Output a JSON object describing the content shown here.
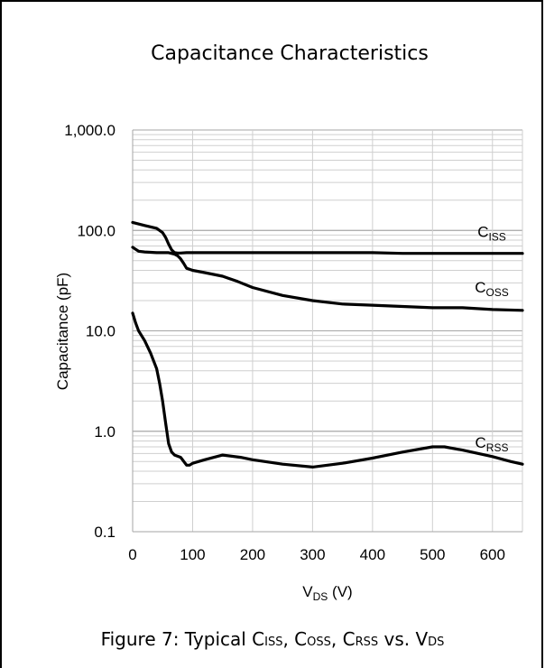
{
  "chart_data": {
    "type": "line",
    "title": "Capacitance Characteristics",
    "xlabel": {
      "main": "V",
      "sub": "DS",
      "unit": " (V)"
    },
    "ylabel": "Capacitance (pF)",
    "xlim": [
      0,
      650
    ],
    "ylim": [
      0.1,
      1000
    ],
    "yscale": "log",
    "xticks": [
      "0",
      "100",
      "200",
      "300",
      "400",
      "500",
      "600"
    ],
    "yticks": [
      "0.1",
      "1.0",
      "10.0",
      "100.0",
      "1,000.0"
    ],
    "grid": true,
    "series": [
      {
        "name": {
          "main": "C",
          "sub": "ISS"
        },
        "color": "#000000",
        "x": [
          0,
          20,
          40,
          50,
          55,
          60,
          65,
          70,
          75,
          80,
          90,
          100,
          150,
          200,
          300,
          400,
          450,
          500,
          600,
          650
        ],
        "y": [
          120,
          112,
          105,
          95,
          85,
          73,
          64,
          60,
          59.5,
          59.5,
          60,
          60,
          60,
          60,
          60,
          60,
          59,
          59,
          59,
          59
        ]
      },
      {
        "name": {
          "main": "C",
          "sub": "OSS"
        },
        "color": "#000000",
        "x": [
          0,
          10,
          20,
          40,
          60,
          70,
          75,
          80,
          85,
          90,
          100,
          120,
          150,
          175,
          200,
          250,
          300,
          350,
          400,
          450,
          500,
          550,
          600,
          650
        ],
        "y": [
          68,
          62,
          61,
          60,
          60,
          58,
          56,
          52,
          47,
          42,
          40,
          38,
          35,
          31,
          27,
          22.5,
          20,
          18.5,
          18,
          17.5,
          17,
          17,
          16.3,
          16
        ]
      },
      {
        "name": {
          "main": "C",
          "sub": "RSS"
        },
        "color": "#000000",
        "x": [
          0,
          5,
          10,
          20,
          30,
          40,
          45,
          50,
          55,
          60,
          65,
          70,
          80,
          90,
          95,
          100,
          120,
          150,
          180,
          200,
          250,
          300,
          350,
          400,
          450,
          500,
          520,
          550,
          600,
          630,
          650
        ],
        "y": [
          15,
          12,
          10,
          8,
          6,
          4.2,
          3,
          2,
          1.2,
          0.75,
          0.62,
          0.58,
          0.55,
          0.46,
          0.46,
          0.48,
          0.52,
          0.58,
          0.55,
          0.52,
          0.47,
          0.44,
          0.48,
          0.54,
          0.62,
          0.7,
          0.7,
          0.65,
          0.56,
          0.5,
          0.47
        ]
      }
    ],
    "caption": {
      "prefix": "Figure 7: Typical C",
      "sub1": "ISS",
      "mid1": ", C",
      "sub2": "OSS",
      "mid2": ", C",
      "sub3": "RSS",
      "mid3": " vs. V",
      "sub4": "DS"
    }
  }
}
